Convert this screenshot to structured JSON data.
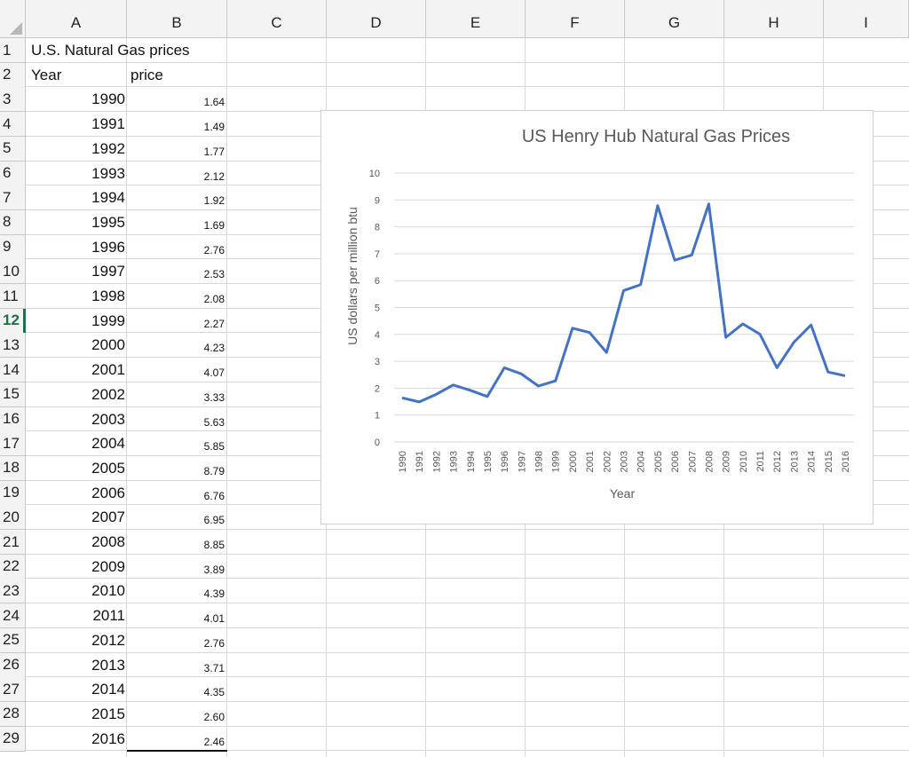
{
  "sheet": {
    "columns": [
      "A",
      "B",
      "C",
      "D",
      "E",
      "F",
      "G",
      "H",
      "I"
    ],
    "rows": [
      "1",
      "2",
      "3",
      "4",
      "5",
      "6",
      "7",
      "8",
      "9",
      "10",
      "11",
      "12",
      "13",
      "14",
      "15",
      "16",
      "17",
      "18",
      "19",
      "20",
      "21",
      "22",
      "23",
      "24",
      "25",
      "26",
      "27",
      "28",
      "29"
    ],
    "active_row": "12",
    "title_cell": "U.S. Natural Gas prices",
    "header_year": "Year",
    "header_price": "price",
    "data": [
      {
        "year": "1990",
        "price": "1.64"
      },
      {
        "year": "1991",
        "price": "1.49"
      },
      {
        "year": "1992",
        "price": "1.77"
      },
      {
        "year": "1993",
        "price": "2.12"
      },
      {
        "year": "1994",
        "price": "1.92"
      },
      {
        "year": "1995",
        "price": "1.69"
      },
      {
        "year": "1996",
        "price": "2.76"
      },
      {
        "year": "1997",
        "price": "2.53"
      },
      {
        "year": "1998",
        "price": "2.08"
      },
      {
        "year": "1999",
        "price": "2.27"
      },
      {
        "year": "2000",
        "price": "4.23"
      },
      {
        "year": "2001",
        "price": "4.07"
      },
      {
        "year": "2002",
        "price": "3.33"
      },
      {
        "year": "2003",
        "price": "5.63"
      },
      {
        "year": "2004",
        "price": "5.85"
      },
      {
        "year": "2005",
        "price": "8.79"
      },
      {
        "year": "2006",
        "price": "6.76"
      },
      {
        "year": "2007",
        "price": "6.95"
      },
      {
        "year": "2008",
        "price": "8.85"
      },
      {
        "year": "2009",
        "price": "3.89"
      },
      {
        "year": "2010",
        "price": "4.39"
      },
      {
        "year": "2011",
        "price": "4.01"
      },
      {
        "year": "2012",
        "price": "2.76"
      },
      {
        "year": "2013",
        "price": "3.71"
      },
      {
        "year": "2014",
        "price": "4.35"
      },
      {
        "year": "2015",
        "price": "2.60"
      },
      {
        "year": "2016",
        "price": "2.46"
      }
    ]
  },
  "chart_data": {
    "type": "line",
    "title": "US Henry Hub Natural Gas Prices",
    "xlabel": "Year",
    "ylabel": "US dollars per million btu",
    "ylim": [
      0,
      10
    ],
    "yticks": [
      "0",
      "1",
      "2",
      "3",
      "4",
      "5",
      "6",
      "7",
      "8",
      "9",
      "10"
    ],
    "grid": true,
    "line_color": "#4472c4",
    "x": [
      "1990",
      "1991",
      "1992",
      "1993",
      "1994",
      "1995",
      "1996",
      "1997",
      "1998",
      "1999",
      "2000",
      "2001",
      "2002",
      "2003",
      "2004",
      "2005",
      "2006",
      "2007",
      "2008",
      "2009",
      "2010",
      "2011",
      "2012",
      "2013",
      "2014",
      "2015",
      "2016"
    ],
    "series": [
      {
        "values": [
          1.64,
          1.49,
          1.77,
          2.12,
          1.92,
          1.69,
          2.76,
          2.53,
          2.08,
          2.27,
          4.23,
          4.07,
          3.33,
          5.63,
          5.85,
          8.79,
          6.76,
          6.95,
          8.85,
          3.89,
          4.39,
          4.01,
          2.76,
          3.71,
          4.35,
          2.6,
          2.46
        ]
      }
    ]
  }
}
